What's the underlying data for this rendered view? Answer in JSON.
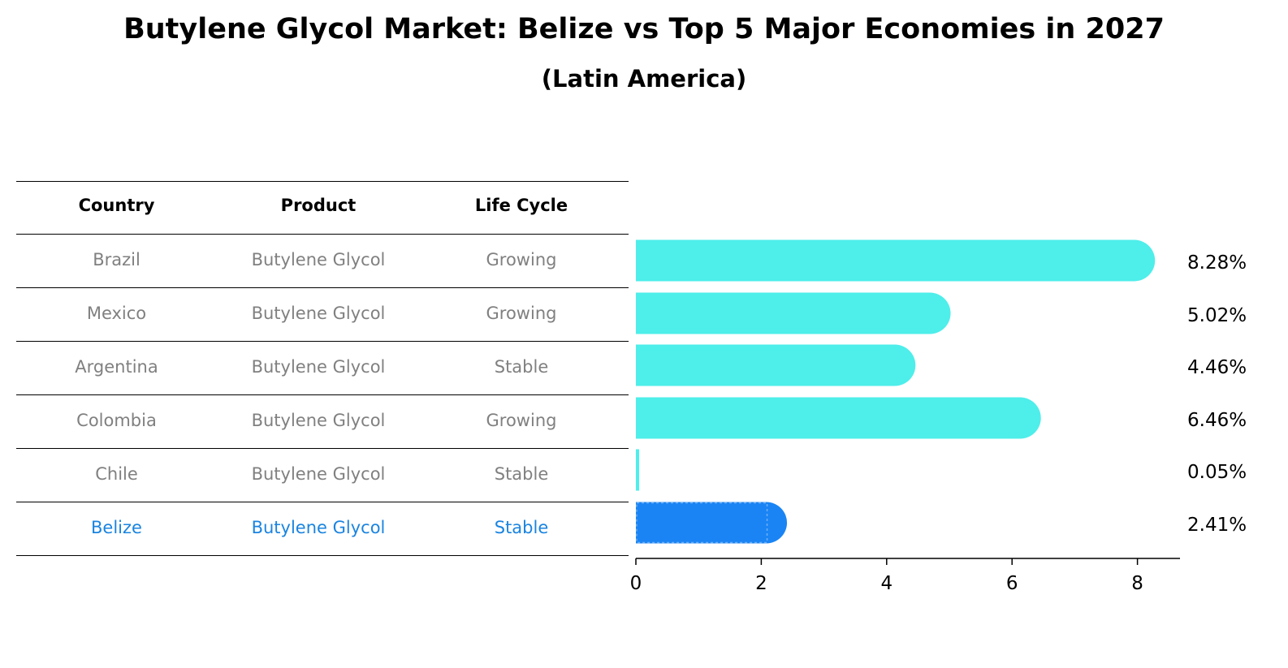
{
  "title": "Butylene Glycol Market: Belize vs Top 5 Major Economies in 2027",
  "subtitle": "(Latin America)",
  "table": {
    "headers": [
      "Country",
      "Product",
      "Life Cycle"
    ],
    "rows": [
      {
        "country": "Brazil",
        "product": "Butylene Glycol",
        "life_cycle": "Growing"
      },
      {
        "country": "Mexico",
        "product": "Butylene Glycol",
        "life_cycle": "Growing"
      },
      {
        "country": "Argentina",
        "product": "Butylene Glycol",
        "life_cycle": "Stable"
      },
      {
        "country": "Colombia",
        "product": "Butylene Glycol",
        "life_cycle": "Growing"
      },
      {
        "country": "Chile",
        "product": "Butylene Glycol",
        "life_cycle": "Stable"
      },
      {
        "country": "Belize",
        "product": "Butylene Glycol",
        "life_cycle": "Stable"
      }
    ],
    "highlight_country": "Belize"
  },
  "colors": {
    "bar": "#4eeeea",
    "highlight_bar": "#1a84f4",
    "highlight_text": "#1a84e0",
    "row_text": "#808080"
  },
  "chart_data": {
    "type": "bar",
    "orientation": "horizontal",
    "categories": [
      "Brazil",
      "Mexico",
      "Argentina",
      "Colombia",
      "Chile",
      "Belize"
    ],
    "values": [
      8.28,
      5.02,
      4.46,
      6.46,
      0.05,
      2.41
    ],
    "data_labels": [
      "8.28%",
      "5.02%",
      "4.46%",
      "6.46%",
      "0.05%",
      "2.41%"
    ],
    "xlim": [
      0,
      8.7
    ],
    "xticks": [
      0,
      2,
      4,
      6,
      8
    ],
    "xtick_labels": [
      "0",
      "2",
      "4",
      "6",
      "8"
    ],
    "highlight_category": "Belize",
    "grid": false
  }
}
